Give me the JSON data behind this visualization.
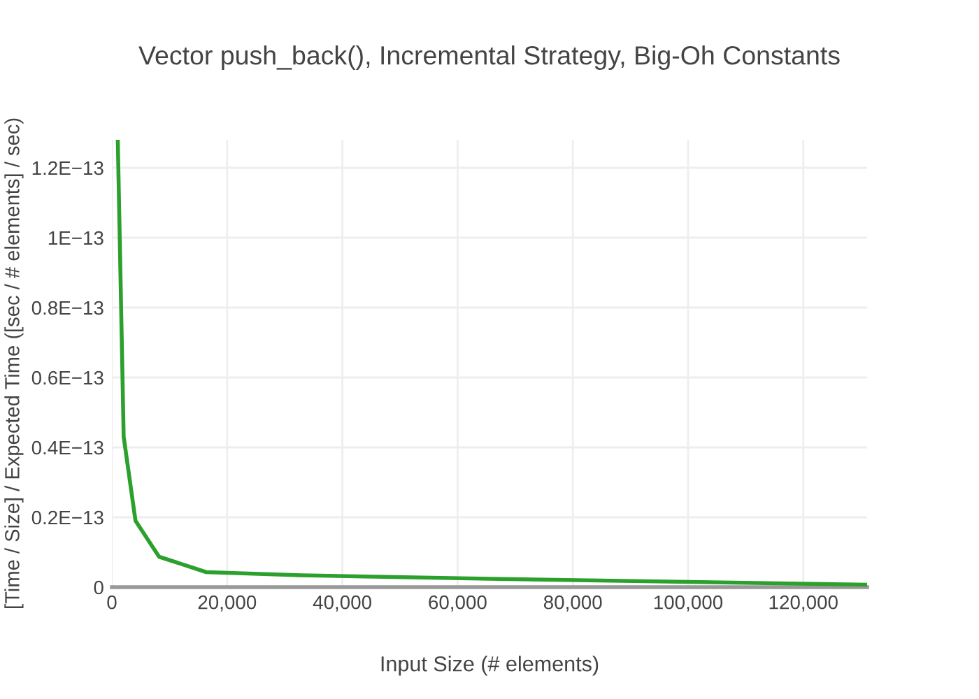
{
  "chart_data": {
    "type": "line",
    "title": "Vector push_back(), Incremental Strategy, Big-Oh Constants",
    "xlabel": "Input Size (# elements)",
    "ylabel": "[Time / Size] / Expected Time ([sec / # elements] / sec)",
    "x": [
      1024,
      2048,
      4096,
      8192,
      16384,
      32768,
      65536,
      131072
    ],
    "series": [
      {
        "color": "#2ca02c",
        "values": [
          1.28e-13,
          4.3e-14,
          1.9e-14,
          8.7e-15,
          4.3e-15,
          3.4e-15,
          2.4e-15,
          7e-16
        ]
      }
    ],
    "xlim": [
      0,
      131072
    ],
    "xticks": [
      0,
      {
        "value": 20000,
        "label": "20,000"
      },
      {
        "value": 40000,
        "label": "40,000"
      },
      {
        "value": 60000,
        "label": "60,000"
      },
      {
        "value": 80000,
        "label": "80,000"
      },
      {
        "value": 100000,
        "label": "100,000"
      },
      {
        "value": 120000,
        "label": "120,000"
      }
    ],
    "ylim": [
      0,
      1.28e-13
    ],
    "yticks": [
      0,
      {
        "value": 2e-14,
        "label": "0.2E−13"
      },
      {
        "value": 4e-14,
        "label": "0.4E−13"
      },
      {
        "value": 6e-14,
        "label": "0.6E−13"
      },
      {
        "value": 8e-14,
        "label": "0.8E−13"
      },
      {
        "value": 1e-13,
        "label": "1E−13"
      },
      {
        "value": 1.2e-13,
        "label": "1.2E−13"
      }
    ],
    "grid": true,
    "marker": "none",
    "line_style": "solid"
  }
}
